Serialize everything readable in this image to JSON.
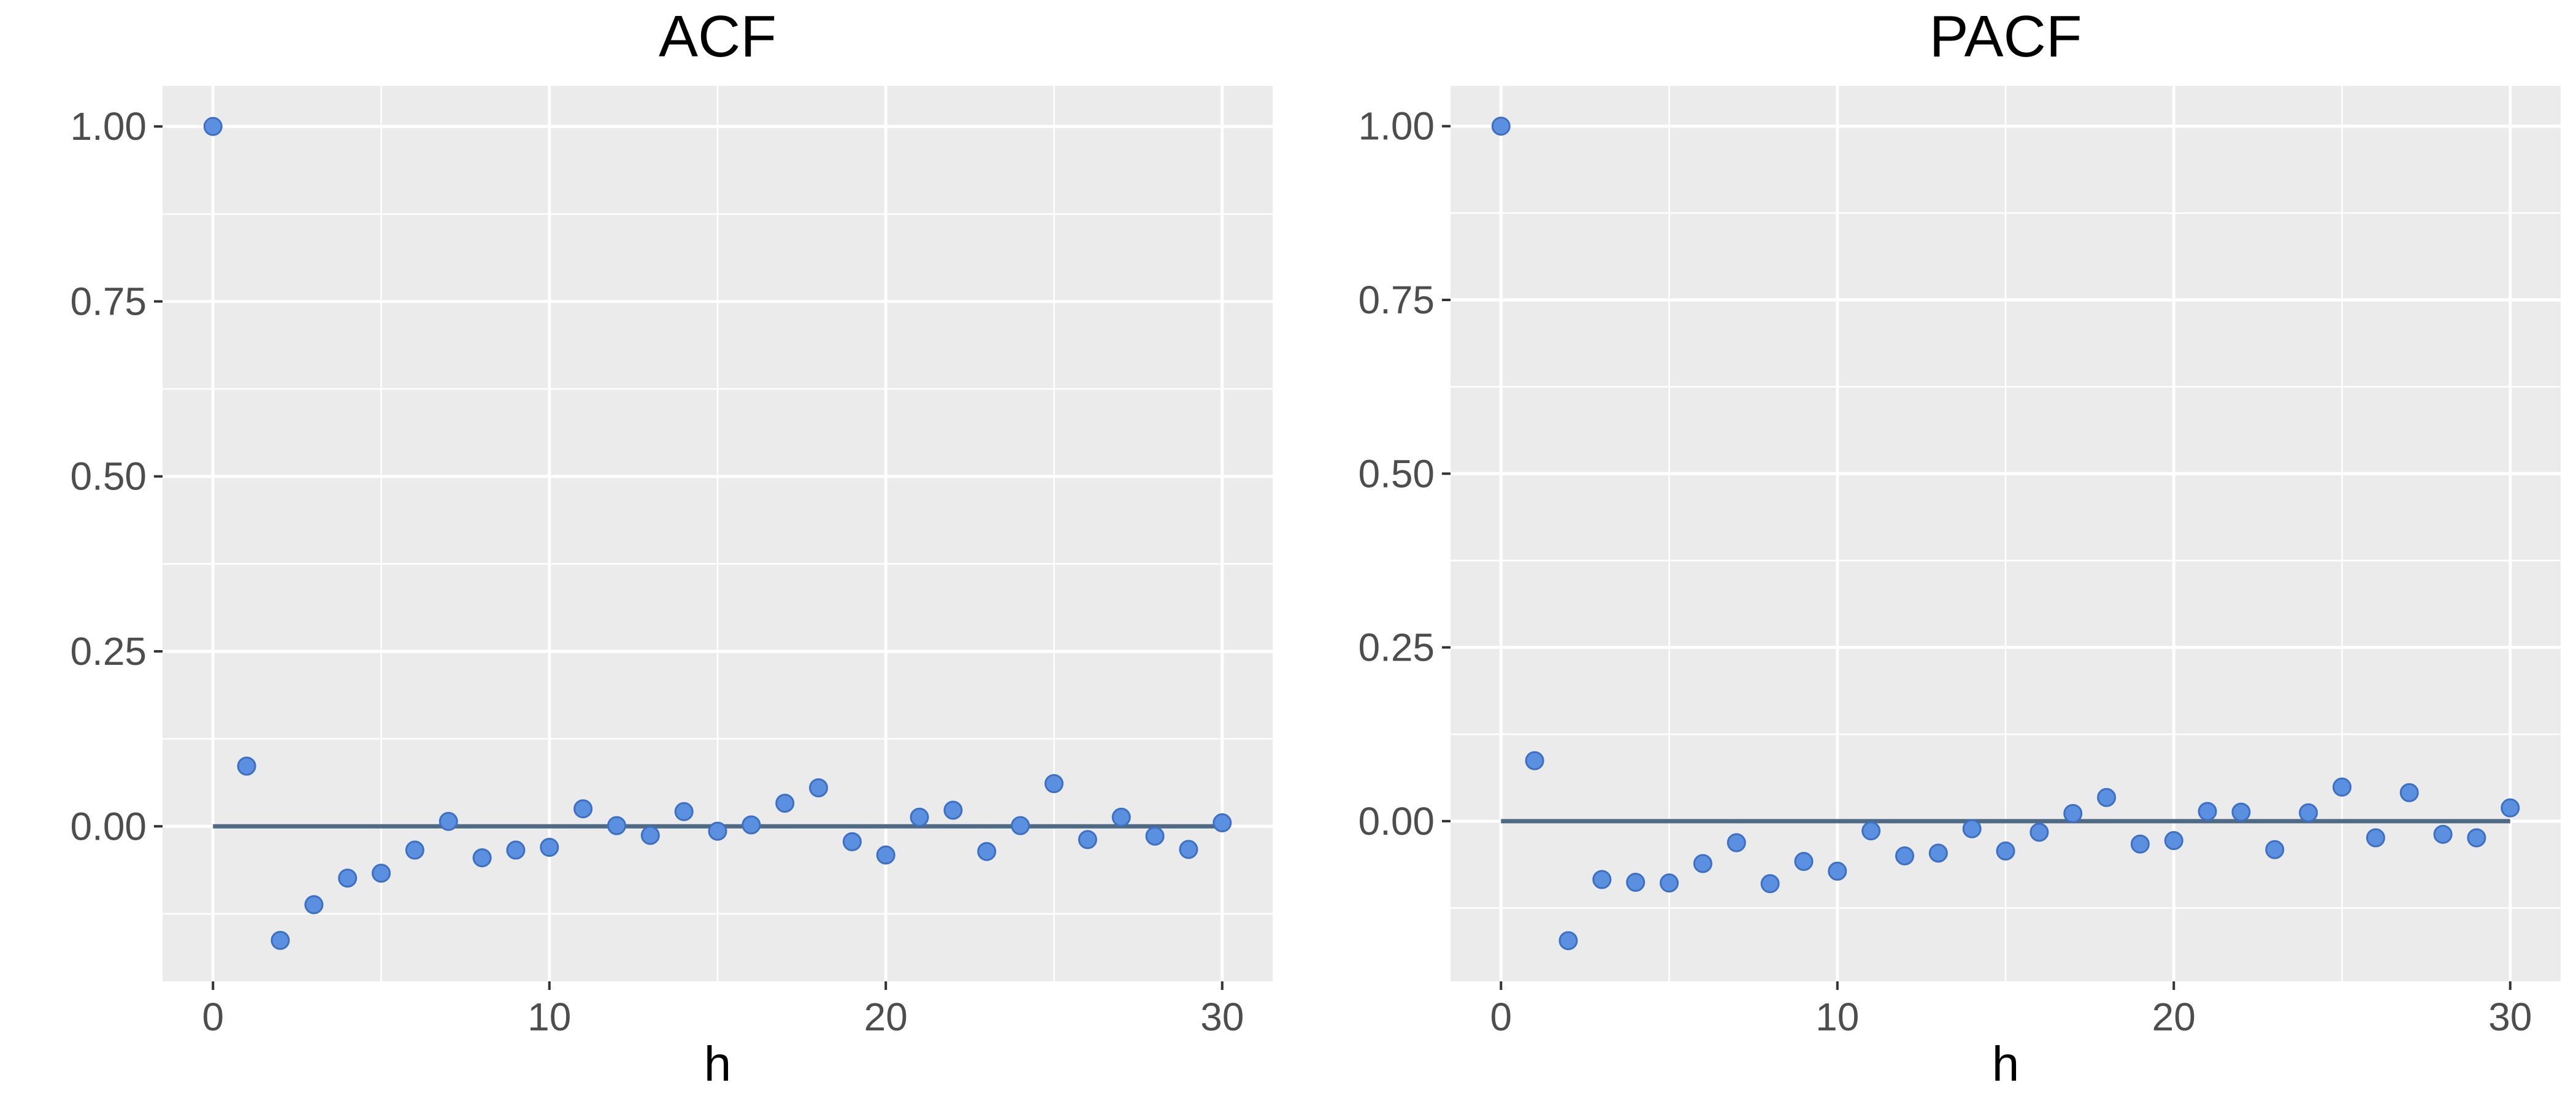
{
  "colors": {
    "panel_background": "#EBEBEB",
    "grid_major": "#FFFFFF",
    "grid_minor": "#F5F5F5",
    "zero_line": "#4F6A85",
    "point_fill": "#5B8FE0",
    "point_stroke": "#3D6FC2",
    "tick": "#333333"
  },
  "chart_data": [
    {
      "type": "scatter",
      "title": "ACF",
      "xlabel": "h",
      "ylabel": "",
      "xlim": [
        -1.5,
        31.5
      ],
      "ylim": [
        -0.2215,
        1.058
      ],
      "x_ticks": [
        0,
        10,
        20,
        30
      ],
      "x_tick_labels": [
        "0",
        "10",
        "20",
        "30"
      ],
      "y_ticks": [
        0,
        0.25,
        0.5,
        0.75,
        1
      ],
      "y_tick_labels": [
        "0.00",
        "0.25",
        "0.50",
        "0.75",
        "1.00"
      ],
      "grid": true,
      "reference_line": {
        "y": 0,
        "x_from": 0,
        "x_to": 30
      },
      "x": [
        0,
        1,
        2,
        3,
        4,
        5,
        6,
        7,
        8,
        9,
        10,
        11,
        12,
        13,
        14,
        15,
        16,
        17,
        18,
        19,
        20,
        21,
        22,
        23,
        24,
        25,
        26,
        27,
        28,
        29,
        30
      ],
      "y": [
        1.0,
        0.086,
        -0.163,
        -0.112,
        -0.074,
        -0.067,
        -0.034,
        0.007,
        -0.045,
        -0.034,
        -0.03,
        0.025,
        0.001,
        -0.013,
        0.021,
        -0.007,
        0.002,
        0.033,
        0.055,
        -0.022,
        -0.041,
        0.013,
        0.023,
        -0.036,
        0.001,
        0.061,
        -0.019,
        0.013,
        -0.014,
        -0.033,
        0.005
      ]
    },
    {
      "type": "scatter",
      "title": "PACF",
      "xlabel": "h",
      "ylabel": "",
      "xlim": [
        -1.5,
        31.5
      ],
      "ylim": [
        -0.2305,
        1.058
      ],
      "x_ticks": [
        0,
        10,
        20,
        30
      ],
      "x_tick_labels": [
        "0",
        "10",
        "20",
        "30"
      ],
      "y_ticks": [
        0,
        0.25,
        0.5,
        0.75,
        1
      ],
      "y_tick_labels": [
        "0.00",
        "0.25",
        "0.50",
        "0.75",
        "1.00"
      ],
      "grid": true,
      "reference_line": {
        "y": 0,
        "x_from": 0,
        "x_to": 30
      },
      "x": [
        0,
        1,
        2,
        3,
        4,
        5,
        6,
        7,
        8,
        9,
        10,
        11,
        12,
        13,
        14,
        15,
        16,
        17,
        18,
        19,
        20,
        21,
        22,
        23,
        24,
        25,
        26,
        27,
        28,
        29,
        30
      ],
      "y": [
        1.0,
        0.087,
        -0.172,
        -0.084,
        -0.088,
        -0.089,
        -0.061,
        -0.031,
        -0.09,
        -0.058,
        -0.072,
        -0.014,
        -0.05,
        -0.046,
        -0.011,
        -0.043,
        -0.016,
        0.011,
        0.034,
        -0.033,
        -0.028,
        0.014,
        0.013,
        -0.041,
        0.012,
        0.049,
        -0.024,
        0.041,
        -0.019,
        -0.024,
        0.019
      ]
    }
  ]
}
